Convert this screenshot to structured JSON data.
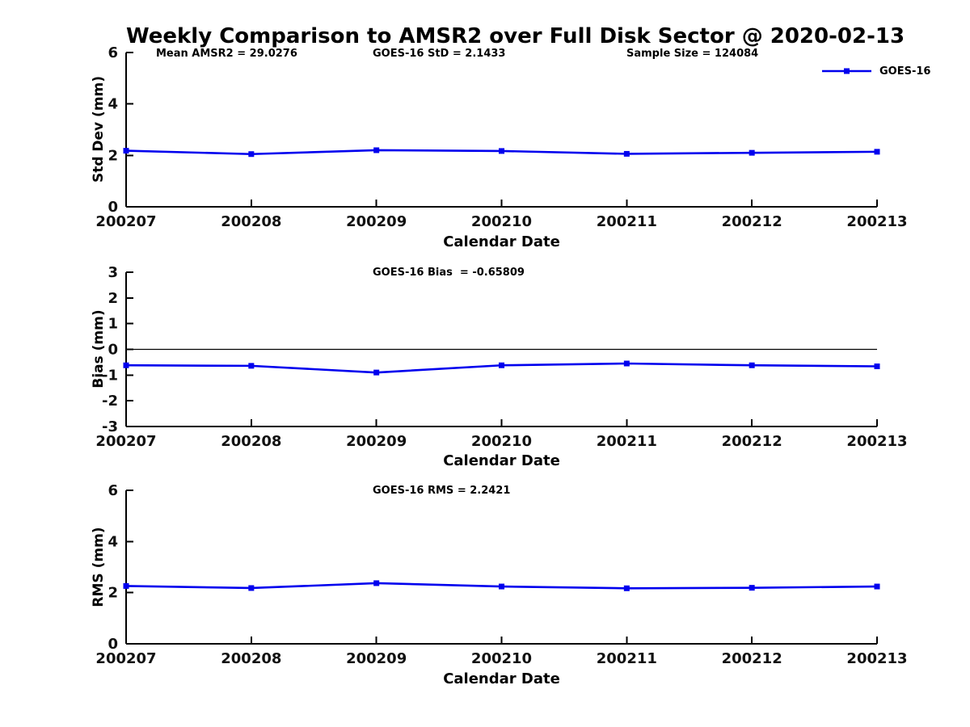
{
  "title": "Weekly Comparison to AMSR2 over Full Disk Sector @ 2020-02-13",
  "legend": {
    "label": "GOES-16",
    "color": "#0000EE"
  },
  "chart_data": [
    {
      "name": "std_dev",
      "type": "line",
      "categories": [
        "200207",
        "200208",
        "200209",
        "200210",
        "200211",
        "200212",
        "200213"
      ],
      "series": [
        {
          "name": "GOES-16",
          "values": [
            2.18,
            2.05,
            2.2,
            2.17,
            2.06,
            2.1,
            2.14
          ]
        }
      ],
      "ylabel": "Std Dev (mm)",
      "xlabel": "Calendar Date",
      "ylim": [
        0,
        6
      ],
      "yticks": [
        0,
        2,
        4,
        6
      ],
      "zero_line": false,
      "line_color": "#0000EE",
      "grid": false,
      "legend_position": "top-right",
      "annotations": [
        "Mean AMSR2 = 29.0276",
        "GOES-16 StD = 2.1433",
        "Sample Size = 124084"
      ]
    },
    {
      "name": "bias",
      "type": "line",
      "categories": [
        "200207",
        "200208",
        "200209",
        "200210",
        "200211",
        "200212",
        "200213"
      ],
      "series": [
        {
          "name": "GOES-16",
          "values": [
            -0.62,
            -0.64,
            -0.9,
            -0.62,
            -0.55,
            -0.62,
            -0.66
          ]
        }
      ],
      "ylabel": "Bias (mm)",
      "xlabel": "Calendar Date",
      "ylim": [
        -3,
        3
      ],
      "yticks": [
        3,
        2,
        1,
        0,
        -1,
        -2,
        -3
      ],
      "zero_line": true,
      "line_color": "#0000EE",
      "grid": false,
      "annotation": "GOES-16 Bias  = -0.65809"
    },
    {
      "name": "rms",
      "type": "line",
      "categories": [
        "200207",
        "200208",
        "200209",
        "200210",
        "200211",
        "200212",
        "200213"
      ],
      "series": [
        {
          "name": "GOES-16",
          "values": [
            2.26,
            2.18,
            2.37,
            2.24,
            2.17,
            2.19,
            2.24
          ]
        }
      ],
      "ylabel": "RMS (mm)",
      "xlabel": "Calendar Date",
      "ylim": [
        0,
        6
      ],
      "yticks": [
        0,
        2,
        4,
        6
      ],
      "zero_line": false,
      "line_color": "#0000EE",
      "grid": false,
      "annotation": "GOES-16 RMS = 2.2421"
    }
  ]
}
